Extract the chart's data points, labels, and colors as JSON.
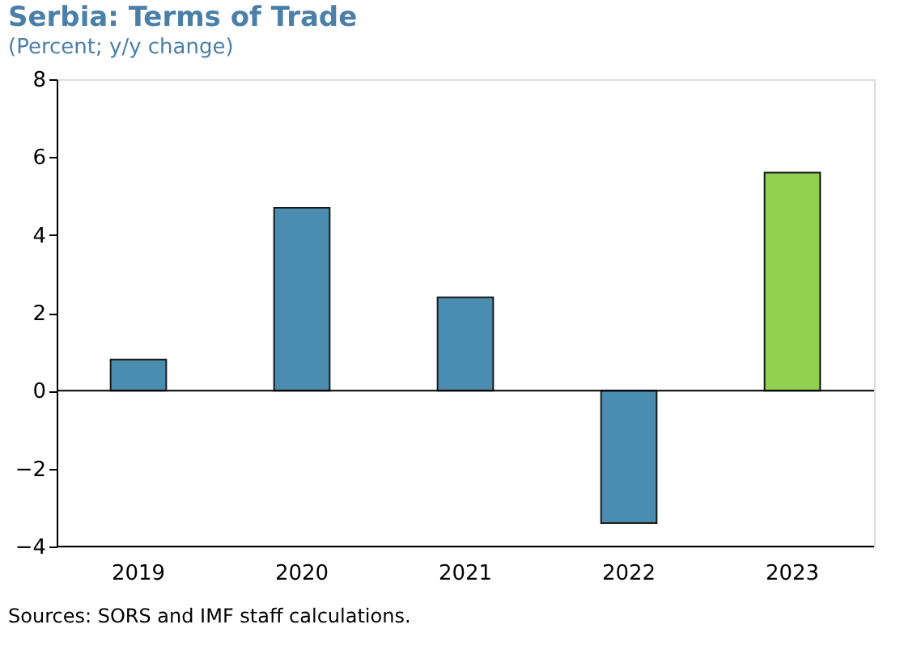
{
  "chart_data": {
    "type": "bar",
    "title": "Serbia: Terms of Trade",
    "subtitle": "(Percent; y/y change)",
    "categories": [
      "2019",
      "2020",
      "2021",
      "2022",
      "2023"
    ],
    "values": [
      0.8,
      4.7,
      2.4,
      -3.4,
      5.6
    ],
    "colors": [
      "#4a8db0",
      "#4a8db0",
      "#4a8db0",
      "#4a8db0",
      "#92d050"
    ],
    "ylim": [
      -4,
      8
    ],
    "yticks": [
      -4,
      -2,
      0,
      2,
      4,
      6,
      8
    ],
    "grid": false,
    "ref_lines": [
      {
        "axis": "y",
        "value": 0,
        "color": "#000000"
      }
    ],
    "annotations": [
      "Sources: SORS and IMF staff calculations."
    ]
  }
}
